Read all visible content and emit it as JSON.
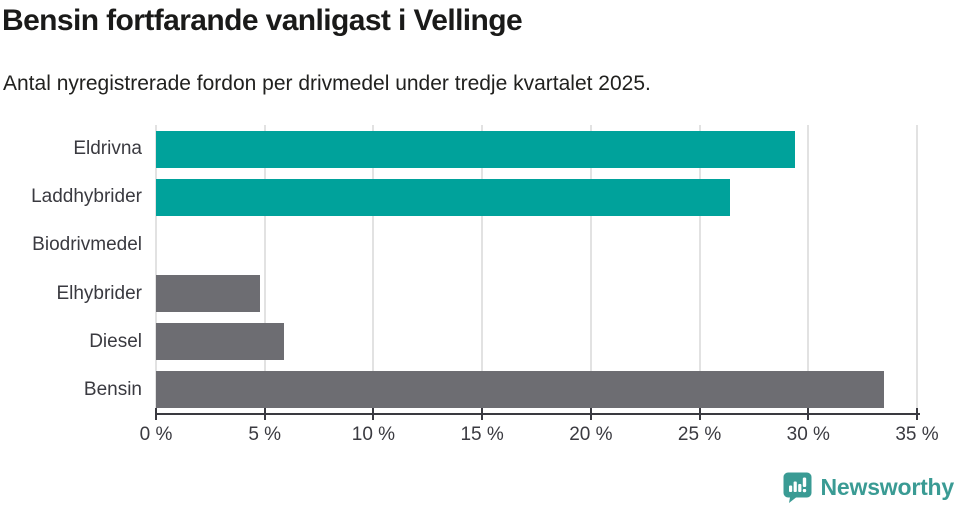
{
  "header": {
    "title": "Bensin fortfarande vanligast i Vellinge",
    "subtitle": "Antal nyregistrerade fordon per drivmedel under tredje kvartalet 2025."
  },
  "chart_data": {
    "type": "bar",
    "orientation": "horizontal",
    "title": "Bensin fortfarande vanligast i Vellinge",
    "subtitle": "Antal nyregistrerade fordon per drivmedel under tredje kvartalet 2025.",
    "categories": [
      "Eldrivna",
      "Laddhybrider",
      "Biodrivmedel",
      "Elhybrider",
      "Diesel",
      "Bensin"
    ],
    "values": [
      29.4,
      26.4,
      0,
      4.8,
      5.9,
      33.5
    ],
    "unit": "%",
    "xlabel": "",
    "ylabel": "",
    "xlim": [
      0,
      35
    ],
    "tick_values": [
      0,
      5,
      10,
      15,
      20,
      25,
      30,
      35
    ],
    "tick_labels": [
      "0 %",
      "5 %",
      "10 %",
      "15 %",
      "20 %",
      "25 %",
      "30 %",
      "35 %"
    ],
    "bar_colors": [
      "#00a29b",
      "#00a29b",
      "#6d6d72",
      "#6d6d72",
      "#6d6d72",
      "#6d6d72"
    ],
    "grid": true,
    "legend": false
  },
  "footer": {
    "brand": "Newsworthy"
  },
  "colors": {
    "accent_teal": "#00a29b",
    "bar_gray": "#6d6d72",
    "gridline": "#e2e2e2",
    "axis": "#3a3a40",
    "logo_teal": "#3a9b94"
  }
}
